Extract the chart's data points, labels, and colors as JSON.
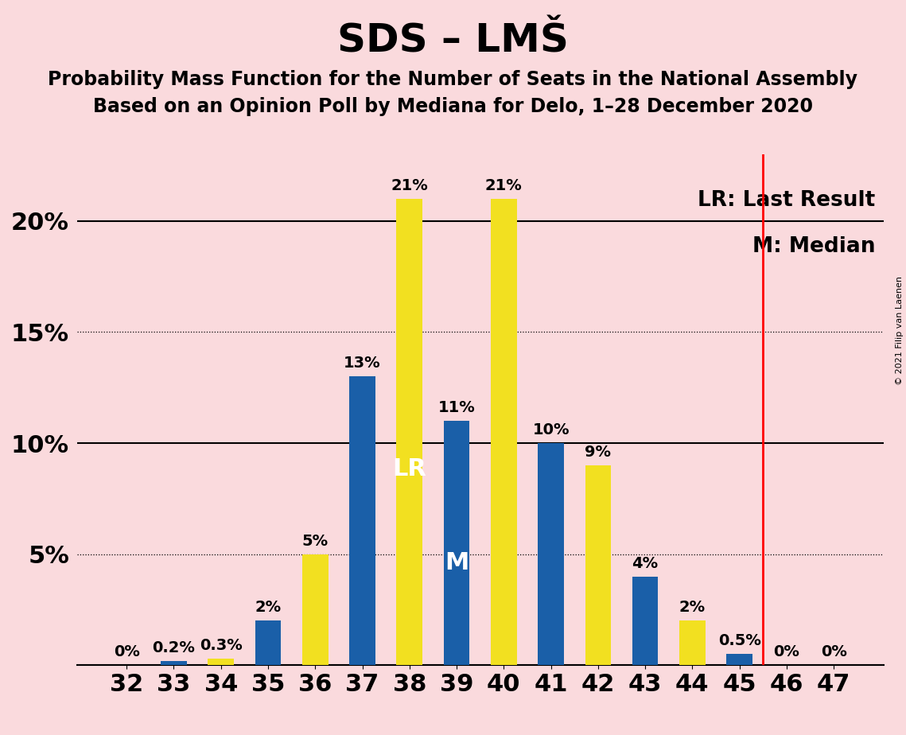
{
  "title": "SDS – LMŠ",
  "subtitle1": "Probability Mass Function for the Number of Seats in the National Assembly",
  "subtitle2": "Based on an Opinion Poll by Mediana for Delo, 1–28 December 2020",
  "copyright": "© 2021 Filip van Laenen",
  "seats": [
    32,
    33,
    34,
    35,
    36,
    37,
    38,
    39,
    40,
    41,
    42,
    43,
    44,
    45,
    46,
    47
  ],
  "bar_values": [
    0,
    0.2,
    0.3,
    2,
    5,
    13,
    21,
    11,
    21,
    10,
    9,
    4,
    2,
    0.5,
    0,
    0
  ],
  "bar_colors": [
    "blue",
    "blue",
    "yellow",
    "blue",
    "yellow",
    "blue",
    "yellow",
    "blue",
    "yellow",
    "blue",
    "yellow",
    "blue",
    "yellow",
    "blue",
    "blue",
    "blue"
  ],
  "bar_labels": [
    "0%",
    "0.2%",
    "0.3%",
    "2%",
    "5%",
    "13%",
    "21%",
    "11%",
    "21%",
    "10%",
    "9%",
    "4%",
    "2%",
    "0.5%",
    "0%",
    "0%"
  ],
  "blue_color": "#1a5fa8",
  "yellow_color": "#f2e020",
  "background_color": "#fadadd",
  "lr_annotation": "LR: Last Result",
  "m_annotation": "M: Median",
  "lr_bar_idx": 6,
  "m_bar_idx": 7,
  "lr_line_after_idx": 13,
  "ylim_max": 23,
  "solid_hlines": [
    0,
    10,
    20
  ],
  "dotted_hlines": [
    5,
    15
  ],
  "ytick_vals": [
    0,
    5,
    10,
    15,
    20
  ],
  "ytick_labels": [
    "",
    "5%",
    "10%",
    "15%",
    "20%"
  ],
  "title_fontsize": 36,
  "subtitle_fontsize": 17,
  "axis_tick_fontsize": 22,
  "bar_label_fontsize": 14,
  "legend_fontsize": 19,
  "copyright_fontsize": 8
}
